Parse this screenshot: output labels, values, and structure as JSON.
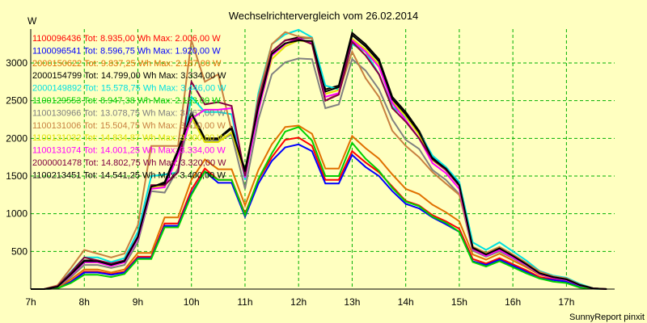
{
  "chart_data": {
    "type": "line",
    "title": "Wechselrichtervergleich vom 26.02.2014",
    "ylabel": "W",
    "footer": "SunnyReport pinxit",
    "ylim": [
      0,
      3450
    ],
    "xlim": [
      7,
      17.9
    ],
    "grid": true,
    "legend_position": "top-left",
    "x_ticks": [
      7,
      8,
      9,
      10,
      11,
      12,
      13,
      14,
      15,
      16,
      17
    ],
    "x_tick_labels": [
      "7h",
      "8h",
      "9h",
      "10h",
      "11h",
      "12h",
      "13h",
      "14h",
      "15h",
      "16h",
      "17h"
    ],
    "y_ticks": [
      500,
      1000,
      1500,
      2000,
      2500,
      3000
    ],
    "y_tick_labels": [
      "500",
      "1000",
      "1500",
      "2000",
      "2500",
      "3000"
    ],
    "x": [
      7.0,
      7.25,
      7.5,
      7.75,
      8.0,
      8.25,
      8.5,
      8.75,
      9.0,
      9.25,
      9.5,
      9.75,
      10.0,
      10.25,
      10.5,
      10.75,
      11.0,
      11.25,
      11.5,
      11.75,
      12.0,
      12.25,
      12.5,
      12.75,
      13.0,
      13.25,
      13.5,
      13.75,
      14.0,
      14.25,
      14.5,
      14.75,
      15.0,
      15.25,
      15.5,
      15.75,
      16.0,
      16.25,
      16.5,
      16.75,
      17.0,
      17.25,
      17.5,
      17.75
    ],
    "series": [
      {
        "name": "1100096436",
        "label": "1100096436 Tot: 8.935,00 Wh Max: 2.006,00 W",
        "color": "#ff0000",
        "values": [
          0,
          0,
          10,
          100,
          230,
          230,
          200,
          230,
          430,
          430,
          870,
          870,
          1320,
          1600,
          1450,
          1450,
          1000,
          1450,
          1750,
          1980,
          2010,
          1900,
          1450,
          1450,
          1830,
          1680,
          1550,
          1360,
          1170,
          1110,
          980,
          900,
          800,
          400,
          340,
          410,
          330,
          250,
          160,
          130,
          110,
          40,
          10,
          0
        ]
      },
      {
        "name": "1100096541",
        "label": "1100096541 Tot: 8.596,75 Wh Max: 1.920,00 W",
        "color": "#0000ff",
        "values": [
          0,
          0,
          10,
          95,
          220,
          220,
          190,
          220,
          410,
          410,
          840,
          840,
          1270,
          1560,
          1410,
          1410,
          960,
          1400,
          1700,
          1880,
          1920,
          1830,
          1400,
          1400,
          1780,
          1620,
          1500,
          1300,
          1130,
          1070,
          950,
          860,
          760,
          370,
          320,
          390,
          310,
          230,
          140,
          120,
          100,
          30,
          5,
          0
        ]
      },
      {
        "name": "2000150622",
        "label": "2000150622 Tot: 9.837,25 Wh Max: 2.187,00 W",
        "color": "#e07000",
        "values": [
          0,
          0,
          20,
          130,
          260,
          260,
          220,
          260,
          480,
          480,
          950,
          950,
          1450,
          1720,
          1590,
          1590,
          1110,
          1580,
          1920,
          2150,
          2170,
          2060,
          1600,
          1600,
          2030,
          1870,
          1730,
          1520,
          1330,
          1260,
          1120,
          1020,
          900,
          460,
          390,
          470,
          380,
          290,
          190,
          150,
          120,
          50,
          10,
          0
        ]
      },
      {
        "name": "2000154799",
        "label": "2000154799 Tot: 14.799,00 Wh Max: 3.334,00 W",
        "color": "#000000",
        "values": [
          0,
          0,
          30,
          200,
          380,
          380,
          330,
          380,
          700,
          1350,
          1420,
          1850,
          2350,
          2000,
          2000,
          2150,
          1580,
          2450,
          3150,
          3300,
          3340,
          3330,
          2650,
          2700,
          3400,
          3250,
          3050,
          2550,
          2350,
          2100,
          1750,
          1620,
          1400,
          560,
          470,
          550,
          450,
          340,
          220,
          170,
          140,
          60,
          10,
          0
        ]
      },
      {
        "name": "2000149892",
        "label": "2000149892 Tot: 15.578,75 Wh Max: 3.446,00 W",
        "color": "#00e0e0",
        "values": [
          0,
          0,
          40,
          230,
          420,
          420,
          360,
          410,
          760,
          1500,
          1520,
          1550,
          2550,
          2350,
          2350,
          2320,
          1450,
          2600,
          3250,
          3380,
          3440,
          3340,
          2700,
          2650,
          3250,
          3150,
          2850,
          2420,
          2280,
          2080,
          1770,
          1620,
          1420,
          620,
          520,
          620,
          500,
          380,
          240,
          180,
          150,
          70,
          10,
          0
        ]
      },
      {
        "name": "1100129553",
        "label": "1100129553 Tot: 8.947,38 Wh Max: 2.153,00 W",
        "color": "#00d000",
        "values": [
          0,
          0,
          10,
          80,
          190,
          190,
          160,
          200,
          400,
          400,
          820,
          820,
          1250,
          1560,
          1450,
          1450,
          980,
          1460,
          1800,
          2090,
          2150,
          1970,
          1500,
          1500,
          1940,
          1730,
          1570,
          1340,
          1160,
          1100,
          960,
          880,
          760,
          360,
          300,
          370,
          290,
          210,
          140,
          100,
          80,
          20,
          5,
          0
        ]
      },
      {
        "name": "1100130966",
        "label": "1100130966 Tot: 13.078,75 Wh Max: 3.067,00 W",
        "color": "#808080",
        "values": [
          0,
          0,
          30,
          160,
          320,
          320,
          280,
          320,
          620,
          1300,
          1280,
          1600,
          2350,
          1970,
          1970,
          2050,
          1330,
          2250,
          2850,
          3010,
          3060,
          3050,
          2400,
          2450,
          3050,
          2900,
          2650,
          2250,
          1980,
          1860,
          1580,
          1450,
          1260,
          510,
          430,
          500,
          410,
          310,
          200,
          150,
          120,
          50,
          10,
          0
        ]
      },
      {
        "name": "1100131006",
        "label": "1100131006 Tot: 15.504,75 Wh Max: 3.410,00 W",
        "color": "#c88040",
        "values": [
          0,
          0,
          50,
          280,
          520,
          470,
          420,
          470,
          850,
          1900,
          1900,
          1900,
          3300,
          2750,
          2850,
          2100,
          1500,
          2550,
          3250,
          3410,
          3350,
          3330,
          2500,
          2600,
          3150,
          2800,
          2550,
          2100,
          1900,
          1750,
          1550,
          1400,
          1250,
          560,
          480,
          560,
          460,
          350,
          230,
          170,
          140,
          60,
          10,
          0
        ]
      },
      {
        "name": "1100131032",
        "label": "1100131032 Tot: 14.834,87 Wh Max: 3.300,00 W",
        "color": "#e0e000",
        "values": [
          0,
          0,
          30,
          190,
          360,
          360,
          310,
          360,
          680,
          1350,
          1360,
          1800,
          2280,
          1950,
          1950,
          2080,
          1530,
          2380,
          3050,
          3220,
          3300,
          3270,
          2590,
          2640,
          3320,
          3180,
          2980,
          2490,
          2290,
          2050,
          1710,
          1580,
          1370,
          550,
          460,
          540,
          440,
          330,
          210,
          160,
          130,
          55,
          10,
          0
        ]
      },
      {
        "name": "1100131074",
        "label": "1100131074 Tot: 14.001,25 Wh Max: 3.334,00 W",
        "color": "#ff00ff",
        "values": [
          0,
          0,
          30,
          185,
          355,
          355,
          305,
          355,
          670,
          1330,
          1350,
          1780,
          2260,
          2380,
          2380,
          2400,
          1480,
          2360,
          3100,
          3250,
          3330,
          3260,
          2550,
          2600,
          3300,
          3150,
          2950,
          2470,
          2240,
          2000,
          1670,
          1540,
          1330,
          530,
          440,
          520,
          420,
          320,
          200,
          150,
          120,
          50,
          10,
          0
        ]
      },
      {
        "name": "2000001478",
        "label": "2000001478 Tot: 14.802,75 Wh Max: 3.320,00 W",
        "color": "#800040",
        "values": [
          0,
          0,
          40,
          220,
          420,
          380,
          340,
          380,
          700,
          1380,
          1380,
          1550,
          2750,
          2450,
          2480,
          2430,
          1500,
          2500,
          3150,
          3300,
          3320,
          3250,
          2500,
          2580,
          3280,
          3100,
          2850,
          2400,
          2220,
          2000,
          1720,
          1580,
          1370,
          540,
          460,
          540,
          440,
          330,
          210,
          160,
          130,
          55,
          10,
          0
        ]
      },
      {
        "name": "1100213451",
        "label": "1100213451 Tot: 14.541,25 Wh Max: 3.400,00 W",
        "color": "#000000",
        "values": [
          0,
          0,
          30,
          195,
          370,
          370,
          320,
          370,
          690,
          1360,
          1400,
          1830,
          2330,
          1990,
          1990,
          2130,
          1560,
          2420,
          3120,
          3260,
          3300,
          3290,
          2620,
          2680,
          3370,
          3220,
          3020,
          2520,
          2320,
          2080,
          1730,
          1600,
          1380,
          550,
          460,
          540,
          440,
          330,
          210,
          160,
          130,
          55,
          10,
          0
        ]
      }
    ]
  }
}
